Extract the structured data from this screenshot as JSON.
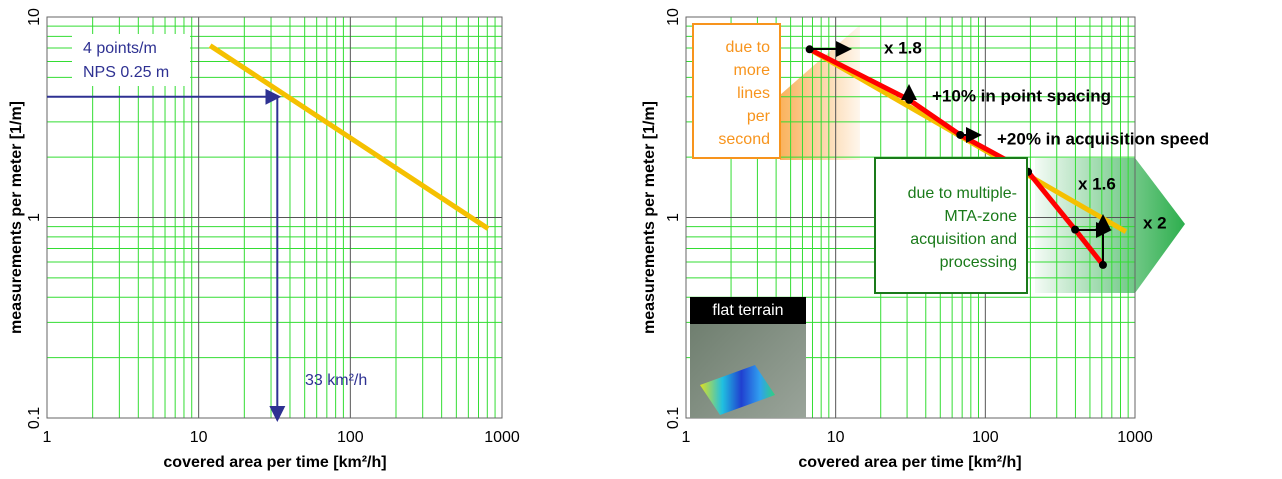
{
  "chart_data": [
    {
      "type": "line",
      "x_label": "covered area per time [km²/h]",
      "y_label": "measurements per meter [1/m]",
      "log_x": true,
      "log_y": true,
      "xlim": [
        1,
        1000
      ],
      "ylim": [
        0.1,
        10
      ],
      "xticks": [
        1,
        10,
        100,
        1000
      ],
      "yticks": [
        0.1,
        1,
        10
      ],
      "grid": true,
      "minor_grid": true,
      "series": [
        {
          "color": "#f5c000",
          "x": [
            11.9,
            810
          ],
          "values": [
            7.2,
            0.88
          ]
        }
      ],
      "guide": {
        "x": 33,
        "y": 4,
        "color": "#2e3192"
      },
      "annotations": [
        "4 points/m",
        "NPS 0.25 m",
        "33 km²/h"
      ]
    },
    {
      "type": "line",
      "x_label": "covered area per time [km²/h]",
      "y_label": "measurements per meter [1/m]",
      "log_x": true,
      "log_y": true,
      "xlim": [
        1,
        1000
      ],
      "ylim": [
        0.1,
        10
      ],
      "xticks": [
        1,
        10,
        100,
        1000
      ],
      "yticks": [
        0.1,
        1,
        10
      ],
      "grid": true,
      "minor_grid": true,
      "series": [
        {
          "color": "#f5c000",
          "x": [
            6.7,
            870
          ],
          "values": [
            6.9,
            0.85
          ]
        },
        {
          "color": "#ff0000",
          "markers": true,
          "x": [
            6.7,
            31,
            68,
            193,
            398,
            611
          ],
          "values": [
            6.9,
            3.86,
            2.58,
            1.69,
            0.87,
            0.58
          ]
        }
      ],
      "annotations": [
        "x 1.8",
        "+10% in point spacing",
        "+20% in acquisition speed",
        "x 1.6",
        "x 2"
      ],
      "boxes": [
        {
          "lines": [
            "due to",
            "more",
            "lines",
            "per",
            "second"
          ],
          "color": "#f7941d"
        },
        {
          "lines": [
            "due to multiple-",
            "MTA-zone",
            "acquisition and",
            "processing"
          ],
          "color": "#1a7a1a"
        }
      ],
      "inset_title": "flat terrain"
    }
  ]
}
